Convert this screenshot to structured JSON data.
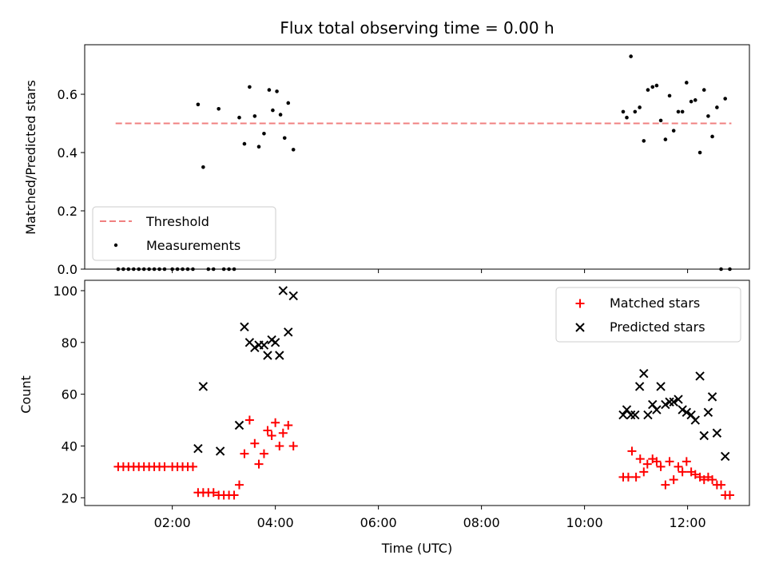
{
  "chart_data": [
    {
      "type": "scatter",
      "title": "Flux total observing time = 0.00 h",
      "xlabel": "",
      "ylabel": "Matched/Predicted stars",
      "xlim": [
        0.3,
        13.2
      ],
      "ylim": [
        0.0,
        0.77
      ],
      "yticks": [
        0.0,
        0.2,
        0.4,
        0.6
      ],
      "yticklabels": [
        "0.0",
        "0.2",
        "0.4",
        "0.6"
      ],
      "legend_position": "lower-left",
      "threshold": {
        "name": "Threshold",
        "value": 0.5,
        "x_range": [
          0.9,
          12.85
        ],
        "color": "#f08080"
      },
      "series": [
        {
          "name": "Measurements",
          "color": "#000000",
          "points": [
            [
              0.95,
              0.0
            ],
            [
              1.05,
              0.0
            ],
            [
              1.15,
              0.0
            ],
            [
              1.25,
              0.0
            ],
            [
              1.35,
              0.0
            ],
            [
              1.45,
              0.0
            ],
            [
              1.55,
              0.0
            ],
            [
              1.65,
              0.0
            ],
            [
              1.75,
              0.0
            ],
            [
              1.85,
              0.0
            ],
            [
              2.0,
              0.0
            ],
            [
              2.1,
              0.0
            ],
            [
              2.2,
              0.0
            ],
            [
              2.3,
              0.0
            ],
            [
              2.4,
              0.0
            ],
            [
              2.5,
              0.565
            ],
            [
              2.6,
              0.35
            ],
            [
              2.7,
              0.0
            ],
            [
              2.8,
              0.0
            ],
            [
              2.9,
              0.55
            ],
            [
              3.0,
              0.0
            ],
            [
              3.1,
              0.0
            ],
            [
              3.2,
              0.0
            ],
            [
              3.3,
              0.52
            ],
            [
              3.4,
              0.43
            ],
            [
              3.5,
              0.625
            ],
            [
              3.6,
              0.525
            ],
            [
              3.68,
              0.42
            ],
            [
              3.78,
              0.465
            ],
            [
              3.88,
              0.615
            ],
            [
              3.95,
              0.545
            ],
            [
              4.03,
              0.61
            ],
            [
              4.1,
              0.53
            ],
            [
              4.18,
              0.45
            ],
            [
              4.25,
              0.57
            ],
            [
              4.35,
              0.41
            ],
            [
              10.75,
              0.54
            ],
            [
              10.82,
              0.52
            ],
            [
              10.9,
              0.73
            ],
            [
              10.98,
              0.54
            ],
            [
              11.07,
              0.555
            ],
            [
              11.15,
              0.44
            ],
            [
              11.23,
              0.615
            ],
            [
              11.32,
              0.625
            ],
            [
              11.4,
              0.63
            ],
            [
              11.48,
              0.51
            ],
            [
              11.57,
              0.445
            ],
            [
              11.65,
              0.595
            ],
            [
              11.73,
              0.475
            ],
            [
              11.82,
              0.54
            ],
            [
              11.9,
              0.54
            ],
            [
              11.98,
              0.64
            ],
            [
              12.07,
              0.575
            ],
            [
              12.15,
              0.58
            ],
            [
              12.24,
              0.4
            ],
            [
              12.32,
              0.615
            ],
            [
              12.4,
              0.525
            ],
            [
              12.48,
              0.455
            ],
            [
              12.57,
              0.555
            ],
            [
              12.65,
              0.0
            ],
            [
              12.73,
              0.585
            ],
            [
              12.82,
              0.0
            ]
          ]
        }
      ]
    },
    {
      "type": "scatter",
      "title": "",
      "xlabel": "Time (UTC)",
      "ylabel": "Count",
      "xlim": [
        0.3,
        13.2
      ],
      "ylim": [
        17,
        104
      ],
      "xticks": [
        2,
        4,
        6,
        8,
        10,
        12
      ],
      "xticklabels": [
        "02:00",
        "04:00",
        "06:00",
        "08:00",
        "10:00",
        "12:00"
      ],
      "yticks": [
        20,
        40,
        60,
        80,
        100
      ],
      "yticklabels": [
        "20",
        "40",
        "60",
        "80",
        "100"
      ],
      "legend_position": "top-right",
      "series": [
        {
          "name": "Matched stars",
          "marker": "plus",
          "color": "#ff0000",
          "points": [
            [
              0.95,
              32
            ],
            [
              1.05,
              32
            ],
            [
              1.15,
              32
            ],
            [
              1.25,
              32
            ],
            [
              1.35,
              32
            ],
            [
              1.45,
              32
            ],
            [
              1.55,
              32
            ],
            [
              1.65,
              32
            ],
            [
              1.75,
              32
            ],
            [
              1.85,
              32
            ],
            [
              2.0,
              32
            ],
            [
              2.1,
              32
            ],
            [
              2.2,
              32
            ],
            [
              2.3,
              32
            ],
            [
              2.4,
              32
            ],
            [
              2.5,
              22
            ],
            [
              2.6,
              22
            ],
            [
              2.7,
              22
            ],
            [
              2.8,
              22
            ],
            [
              2.9,
              21
            ],
            [
              3.0,
              21
            ],
            [
              3.1,
              21
            ],
            [
              3.2,
              21
            ],
            [
              3.3,
              25
            ],
            [
              3.4,
              37
            ],
            [
              3.5,
              50
            ],
            [
              3.6,
              41
            ],
            [
              3.68,
              33
            ],
            [
              3.78,
              37
            ],
            [
              3.85,
              46
            ],
            [
              3.93,
              44
            ],
            [
              4.0,
              49
            ],
            [
              4.08,
              40
            ],
            [
              4.15,
              45
            ],
            [
              4.25,
              48
            ],
            [
              4.35,
              40
            ],
            [
              10.75,
              28
            ],
            [
              10.85,
              28
            ],
            [
              10.92,
              38
            ],
            [
              11.0,
              28
            ],
            [
              11.08,
              35
            ],
            [
              11.15,
              30
            ],
            [
              11.22,
              33
            ],
            [
              11.32,
              35
            ],
            [
              11.4,
              34
            ],
            [
              11.48,
              32
            ],
            [
              11.57,
              25
            ],
            [
              11.65,
              34
            ],
            [
              11.73,
              27
            ],
            [
              11.82,
              32
            ],
            [
              11.9,
              30
            ],
            [
              11.98,
              34
            ],
            [
              12.07,
              30
            ],
            [
              12.15,
              29
            ],
            [
              12.24,
              28
            ],
            [
              12.32,
              27
            ],
            [
              12.4,
              28
            ],
            [
              12.48,
              27
            ],
            [
              12.57,
              25
            ],
            [
              12.65,
              25
            ],
            [
              12.73,
              21
            ],
            [
              12.82,
              21
            ]
          ]
        },
        {
          "name": "Predicted stars",
          "marker": "x",
          "color": "#000000",
          "points": [
            [
              2.5,
              39
            ],
            [
              2.6,
              63
            ],
            [
              2.93,
              38
            ],
            [
              3.3,
              48
            ],
            [
              3.4,
              86
            ],
            [
              3.5,
              80
            ],
            [
              3.6,
              78
            ],
            [
              3.68,
              79
            ],
            [
              3.78,
              79
            ],
            [
              3.85,
              75
            ],
            [
              3.93,
              81
            ],
            [
              4.0,
              80
            ],
            [
              4.08,
              75
            ],
            [
              4.15,
              100
            ],
            [
              4.25,
              84
            ],
            [
              4.35,
              98
            ],
            [
              10.75,
              52
            ],
            [
              10.82,
              54
            ],
            [
              10.9,
              52
            ],
            [
              10.98,
              52
            ],
            [
              11.07,
              63
            ],
            [
              11.15,
              68
            ],
            [
              11.23,
              52
            ],
            [
              11.32,
              56
            ],
            [
              11.4,
              54
            ],
            [
              11.48,
              63
            ],
            [
              11.57,
              56
            ],
            [
              11.65,
              57
            ],
            [
              11.73,
              57
            ],
            [
              11.82,
              58
            ],
            [
              11.9,
              54
            ],
            [
              11.98,
              53
            ],
            [
              12.07,
              52
            ],
            [
              12.15,
              50
            ],
            [
              12.24,
              67
            ],
            [
              12.32,
              44
            ],
            [
              12.4,
              53
            ],
            [
              12.48,
              59
            ],
            [
              12.57,
              45
            ],
            [
              12.73,
              36
            ]
          ]
        }
      ]
    }
  ]
}
